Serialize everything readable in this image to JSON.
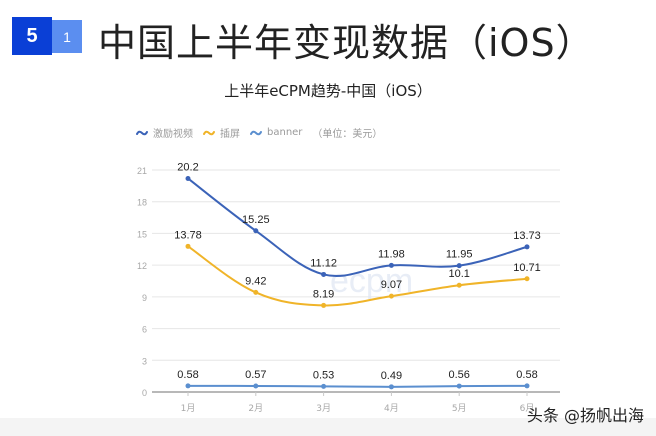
{
  "header": {
    "section_number": "5",
    "subsection_number": "1",
    "title": "中国上半年变现数据（iOS）"
  },
  "watermark": "头条 @扬帆出海",
  "colors": {
    "badge_main": "#0a3fd6",
    "badge_sub": "#5b8ef0",
    "series_reward_video": "#3b63b8",
    "series_interstitial": "#f0b429",
    "series_banner": "#5b8fcf",
    "grid": "#e6e6e6",
    "axis": "#a0a0a0"
  },
  "chart_data": {
    "type": "line",
    "title": "上半年eCPM趋势-中国（iOS）",
    "xlabel": "",
    "ylabel": "",
    "unit_note": "（单位：美元）",
    "categories": [
      "1月",
      "2月",
      "3月",
      "4月",
      "5月",
      "6月"
    ],
    "series": [
      {
        "name": "激励视频",
        "color": "#3b63b8",
        "values": [
          20.2,
          15.25,
          11.12,
          11.98,
          11.95,
          13.73
        ]
      },
      {
        "name": "插屏",
        "color": "#f0b429",
        "values": [
          13.78,
          9.42,
          8.19,
          9.07,
          10.1,
          10.71
        ]
      },
      {
        "name": "banner",
        "color": "#5b8fcf",
        "values": [
          0.58,
          0.57,
          0.53,
          0.49,
          0.56,
          0.58
        ]
      }
    ],
    "yticks": [
      0,
      3,
      6,
      9,
      12,
      15,
      18,
      21
    ],
    "ylim": [
      0,
      21
    ],
    "grid": true,
    "legend_position": "top-left",
    "smooth": true,
    "data_labels": true
  }
}
